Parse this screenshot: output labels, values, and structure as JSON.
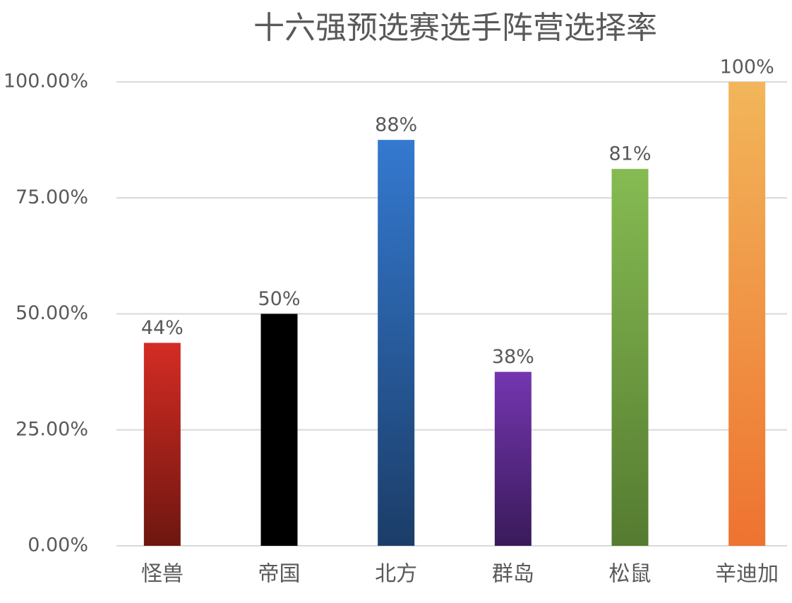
{
  "chart_data": {
    "type": "bar",
    "title": "十六强预选赛选手阵营选择率",
    "categories": [
      "怪兽",
      "帝国",
      "北方",
      "群岛",
      "松鼠",
      "辛迪加"
    ],
    "values": [
      43.75,
      50,
      87.5,
      37.5,
      81.25,
      100
    ],
    "value_labels": [
      "44%",
      "50%",
      "88%",
      "38%",
      "81%",
      "100%"
    ],
    "colors": [
      [
        "#d42c24",
        "#6e1610"
      ],
      [
        "#000000",
        "#000000"
      ],
      [
        "#3479d0",
        "#1b3d68"
      ],
      [
        "#7436b0",
        "#3a1a5a"
      ],
      [
        "#86bb52",
        "#557b30"
      ],
      [
        "#f2b65a",
        "#ee7330"
      ]
    ],
    "ylim": [
      0,
      100
    ],
    "yticks": [
      {
        "value": 0,
        "label": "0.00%"
      },
      {
        "value": 25,
        "label": "25.00%"
      },
      {
        "value": 50,
        "label": "50.00%"
      },
      {
        "value": 75,
        "label": "75.00%"
      },
      {
        "value": 100,
        "label": "100.00%"
      }
    ],
    "grid": true
  }
}
